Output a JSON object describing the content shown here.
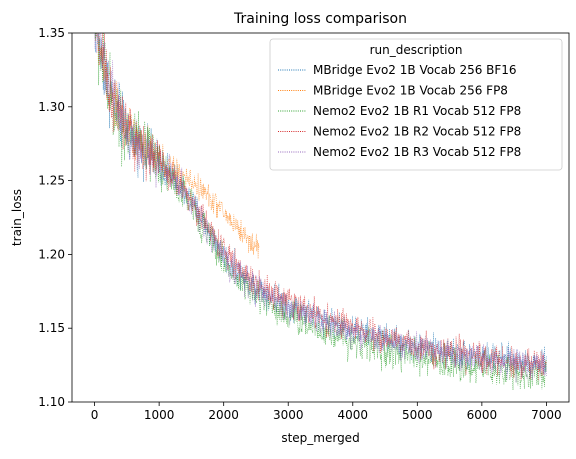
{
  "chart_data": {
    "type": "line",
    "title": "Training loss comparison",
    "xlabel": "step_merged",
    "ylabel": "train_loss",
    "xlim": [
      -350,
      7350
    ],
    "ylim": [
      1.1,
      1.35
    ],
    "xticks": [
      0,
      1000,
      2000,
      3000,
      4000,
      5000,
      6000,
      7000
    ],
    "xtick_labels": [
      "0",
      "1000",
      "2000",
      "3000",
      "4000",
      "5000",
      "6000",
      "7000"
    ],
    "yticks": [
      1.1,
      1.15,
      1.2,
      1.25,
      1.3,
      1.35
    ],
    "ytick_labels": [
      "1.10",
      "1.15",
      "1.20",
      "1.25",
      "1.30",
      "1.35"
    ],
    "grid": false,
    "legend": {
      "title": "run_description",
      "placement": "top-right"
    },
    "series": [
      {
        "name": "MBridge Evo2 1B Vocab 256 BF16",
        "color": "#1f77b4",
        "noise": 0.006,
        "x": [
          0,
          100,
          200,
          300,
          400,
          500,
          600,
          800,
          1000,
          1200,
          1400,
          1600,
          1800,
          2000,
          2200,
          2400,
          2600,
          2800,
          3000,
          3500,
          4000,
          4500,
          5000,
          5500,
          6000,
          6500,
          7000
        ],
        "y": [
          1.36,
          1.335,
          1.315,
          1.302,
          1.292,
          1.284,
          1.278,
          1.27,
          1.262,
          1.253,
          1.242,
          1.229,
          1.214,
          1.199,
          1.189,
          1.181,
          1.176,
          1.171,
          1.166,
          1.157,
          1.149,
          1.143,
          1.138,
          1.134,
          1.131,
          1.128,
          1.126
        ]
      },
      {
        "name": "MBridge Evo2 1B Vocab 256 FP8",
        "color": "#ff7f0e",
        "noise": 0.005,
        "x": [
          0,
          100,
          200,
          300,
          400,
          500,
          600,
          800,
          1000,
          1200,
          1400,
          1600,
          1800,
          2000,
          2200,
          2400,
          2550
        ],
        "y": [
          1.36,
          1.335,
          1.316,
          1.303,
          1.293,
          1.285,
          1.279,
          1.271,
          1.264,
          1.258,
          1.252,
          1.246,
          1.238,
          1.228,
          1.219,
          1.209,
          1.204
        ]
      },
      {
        "name": "Nemo2 Evo2 1B R1 Vocab 512 FP8",
        "color": "#2ca02c",
        "noise": 0.007,
        "x": [
          0,
          100,
          200,
          300,
          400,
          500,
          600,
          800,
          1000,
          1200,
          1400,
          1600,
          1800,
          2000,
          2200,
          2400,
          2600,
          2800,
          3000,
          3500,
          4000,
          4500,
          5000,
          5500,
          6000,
          6500,
          7000
        ],
        "y": [
          1.36,
          1.334,
          1.314,
          1.301,
          1.291,
          1.283,
          1.277,
          1.269,
          1.261,
          1.251,
          1.24,
          1.226,
          1.21,
          1.195,
          1.184,
          1.176,
          1.17,
          1.164,
          1.159,
          1.149,
          1.141,
          1.135,
          1.13,
          1.126,
          1.123,
          1.12,
          1.118
        ]
      },
      {
        "name": "Nemo2 Evo2 1B R2 Vocab 512 FP8",
        "color": "#d62728",
        "noise": 0.006,
        "x": [
          0,
          100,
          200,
          300,
          400,
          500,
          600,
          800,
          1000,
          1200,
          1400,
          1600,
          1800,
          2000,
          2200,
          2400,
          2600,
          2800,
          3000,
          3500,
          4000,
          4500,
          5000,
          5500,
          6000,
          6500,
          7000
        ],
        "y": [
          1.36,
          1.336,
          1.316,
          1.303,
          1.293,
          1.285,
          1.279,
          1.27,
          1.262,
          1.253,
          1.243,
          1.23,
          1.216,
          1.202,
          1.192,
          1.184,
          1.178,
          1.173,
          1.168,
          1.158,
          1.15,
          1.143,
          1.138,
          1.134,
          1.13,
          1.127,
          1.125
        ]
      },
      {
        "name": "Nemo2 Evo2 1B R3 Vocab 512 FP8",
        "color": "#9467bd",
        "noise": 0.006,
        "x": [
          0,
          100,
          200,
          300,
          400,
          500,
          600,
          800,
          1000,
          1200,
          1400,
          1600,
          1800,
          2000,
          2200,
          2400,
          2600,
          2800,
          3000,
          3500,
          4000,
          4500,
          5000,
          5500,
          6000,
          6500,
          7000
        ],
        "y": [
          1.36,
          1.335,
          1.315,
          1.302,
          1.292,
          1.284,
          1.278,
          1.27,
          1.262,
          1.252,
          1.241,
          1.228,
          1.213,
          1.198,
          1.188,
          1.18,
          1.174,
          1.169,
          1.164,
          1.155,
          1.147,
          1.141,
          1.136,
          1.132,
          1.129,
          1.126,
          1.124
        ]
      }
    ]
  }
}
